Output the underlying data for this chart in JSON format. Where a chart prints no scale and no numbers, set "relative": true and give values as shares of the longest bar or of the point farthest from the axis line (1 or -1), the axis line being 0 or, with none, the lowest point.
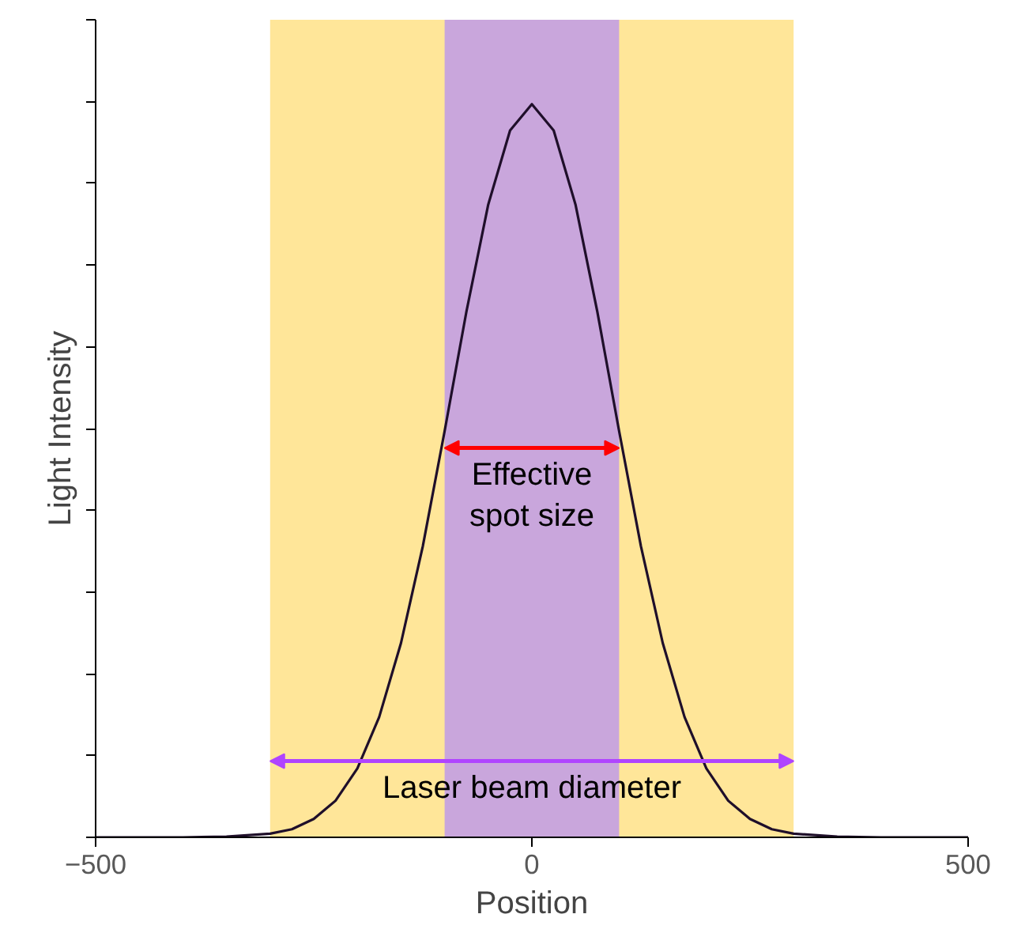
{
  "chart_data": {
    "type": "line",
    "xlabel": "Position",
    "ylabel": "Light Intensity",
    "relative": true,
    "xlim": [
      -500,
      500
    ],
    "xticks": [
      -500,
      0,
      500
    ],
    "series": [
      {
        "color": "#1f0f2a",
        "x": [
          -500,
          -400,
          -350,
          -300,
          -275,
          -250,
          -225,
          -200,
          -175,
          -150,
          -125,
          -100,
          -75,
          -50,
          -25,
          0,
          25,
          50,
          75,
          100,
          125,
          150,
          175,
          200,
          225,
          250,
          275,
          300,
          350,
          400,
          500
        ],
        "values": [
          0,
          0,
          0.001,
          0.005,
          0.011,
          0.025,
          0.05,
          0.094,
          0.164,
          0.265,
          0.397,
          0.554,
          0.717,
          0.863,
          0.964,
          1.0,
          0.964,
          0.863,
          0.717,
          0.554,
          0.397,
          0.265,
          0.164,
          0.094,
          0.05,
          0.025,
          0.011,
          0.005,
          0.001,
          0,
          0
        ]
      }
    ],
    "bands": [
      {
        "axis": "x",
        "from": -300,
        "to": 300,
        "label": "Laser beam diameter",
        "color": "#ffe699"
      },
      {
        "axis": "x",
        "from": -100,
        "to": 100,
        "label": "Effective spot size",
        "color": "#c9a6dc"
      }
    ],
    "grid": false,
    "marker": "none",
    "line_style": "solid"
  }
}
